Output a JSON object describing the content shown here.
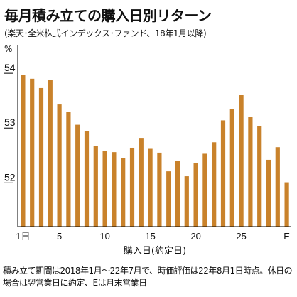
{
  "title": "毎月積み立ての購入日別リターン",
  "subtitle": "(楽天･全米株式インデックス･ファンド、18年1月以降)",
  "footnote": "積み立て期間は2018年1月～22年7月で、時価評価は22年8月1日時点。休日の場合は翌営業日に約定、Eは月末営業日",
  "colors": {
    "bar": "#c9822b",
    "text": "#111111",
    "axis": "#000000"
  },
  "chart_data": {
    "type": "bar",
    "unit": "%",
    "xlabel": "購入日(約定日)",
    "ylabel": "",
    "ylim": [
      51.2,
      54.3
    ],
    "yticks": [
      52,
      53,
      54
    ],
    "categories": [
      "1日",
      "2",
      "3",
      "4",
      "5",
      "6",
      "7",
      "8",
      "9",
      "10",
      "11",
      "12",
      "13",
      "14",
      "15",
      "16",
      "17",
      "18",
      "19",
      "20",
      "21",
      "22",
      "23",
      "24",
      "25",
      "26",
      "27",
      "28",
      "29",
      "E"
    ],
    "xtick_labels": [
      "1日",
      "5",
      "10",
      "15",
      "20",
      "25",
      "E"
    ],
    "values": [
      53.97,
      53.9,
      53.73,
      53.88,
      53.43,
      53.3,
      53.06,
      52.94,
      52.67,
      52.58,
      52.56,
      52.45,
      52.64,
      52.82,
      52.62,
      52.55,
      52.21,
      52.4,
      52.12,
      52.36,
      52.53,
      52.74,
      53.14,
      53.34,
      53.61,
      53.2,
      53.03,
      52.42,
      52.65,
      52.01
    ],
    "grid": false,
    "legend": "none"
  }
}
